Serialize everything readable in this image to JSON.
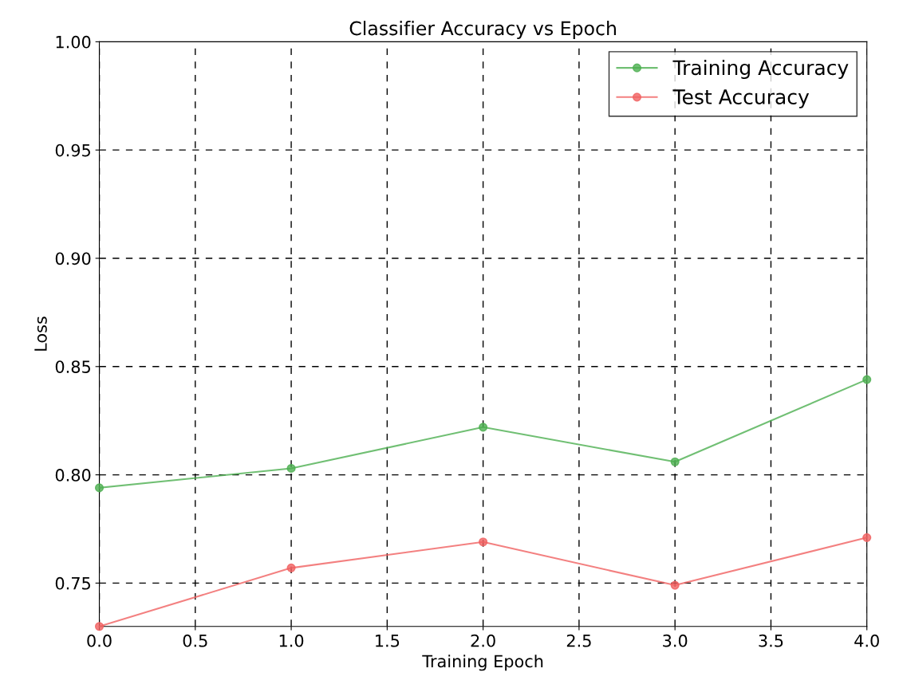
{
  "chart_data": {
    "type": "line",
    "title": "Classifier Accuracy vs Epoch",
    "xlabel": "Training Epoch",
    "ylabel": "Loss",
    "x": [
      0,
      1,
      2,
      3,
      4
    ],
    "series": [
      {
        "name": "Training Accuracy",
        "color": "#4caf50",
        "values": [
          0.794,
          0.803,
          0.822,
          0.806,
          0.844
        ]
      },
      {
        "name": "Test Accuracy",
        "color": "#f06060",
        "values": [
          0.73,
          0.757,
          0.769,
          0.749,
          0.771
        ]
      }
    ],
    "xlim": [
      0,
      4
    ],
    "xticks": [
      {
        "value": 0,
        "label": "0.0"
      },
      {
        "value": 0.5,
        "label": "0.5"
      },
      {
        "value": 1,
        "label": "1.0"
      },
      {
        "value": 1.5,
        "label": "1.5"
      },
      {
        "value": 2,
        "label": "2.0"
      },
      {
        "value": 2.5,
        "label": "2.5"
      },
      {
        "value": 3,
        "label": "3.0"
      },
      {
        "value": 3.5,
        "label": "3.5"
      },
      {
        "value": 4,
        "label": "4.0"
      }
    ],
    "ylim": [
      0.73,
      1.0
    ],
    "yticks": [
      {
        "value": 0.75,
        "label": "0.75"
      },
      {
        "value": 0.8,
        "label": "0.80"
      },
      {
        "value": 0.85,
        "label": "0.85"
      },
      {
        "value": 0.9,
        "label": "0.90"
      },
      {
        "value": 0.95,
        "label": "0.95"
      },
      {
        "value": 1.0,
        "label": "1.00"
      }
    ],
    "grid": true,
    "legend": "top right",
    "marker": "circle",
    "line_style": "solid"
  }
}
